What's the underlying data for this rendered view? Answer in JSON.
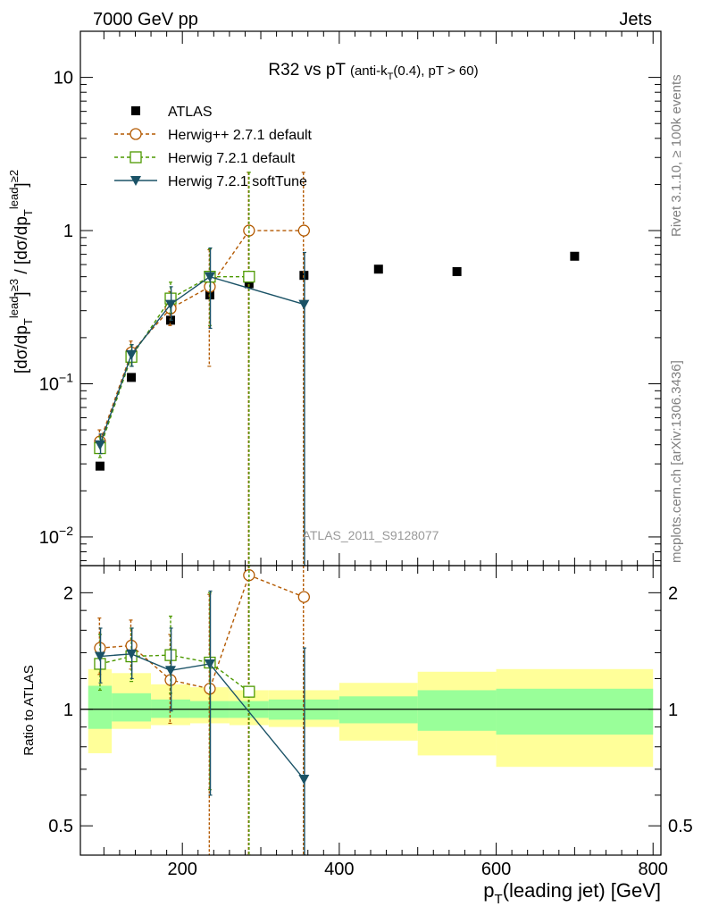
{
  "header": {
    "left": "7000 GeV pp",
    "right": "Jets"
  },
  "side_labels": {
    "rivet": "Rivet 3.1.10, ≥ 100k events",
    "mcplots": "mcplots.cern.ch [arXiv:1306.3436]"
  },
  "chart_data": [
    {
      "type": "scatter",
      "title_main": "R32 vs pT",
      "title_sub": "(anti-k_T(0.4), pT > 60)",
      "ylabel": "[dσ/dp_T^lead]^{≥3} / [dσ/dp_T^lead]^{≥2}",
      "watermark": "ATLAS_2011_S9128077",
      "yscale": "log",
      "xlim": [
        70,
        810
      ],
      "ylim": [
        0.0065,
        20
      ],
      "y_ticks": [
        {
          "value": 0.01,
          "base": "10",
          "exp": "−2"
        },
        {
          "value": 0.1,
          "base": "10",
          "exp": "−1"
        },
        {
          "value": 1,
          "base": "1",
          "exp": ""
        },
        {
          "value": 10,
          "base": "10",
          "exp": ""
        }
      ],
      "legend_position": "top-left",
      "series": [
        {
          "name": "ATLAS",
          "color": "#000000",
          "marker": "filled-square",
          "x": [
            95,
            135,
            185,
            235,
            285,
            355,
            450,
            550,
            700
          ],
          "y": [
            0.029,
            0.11,
            0.26,
            0.38,
            0.45,
            0.51,
            0.56,
            0.54,
            0.68
          ]
        },
        {
          "name": "Herwig++ 2.7.1 default",
          "color": "#b35900",
          "marker": "open-circle",
          "dash": "dashed",
          "x": [
            95,
            135,
            185,
            235,
            285,
            355
          ],
          "y": [
            0.042,
            0.16,
            0.31,
            0.43,
            1.0,
            1.0
          ],
          "err_lo": [
            0.036,
            0.14,
            0.24,
            0.13,
            0.0065,
            0.0065
          ],
          "err_hi": [
            0.05,
            0.19,
            0.4,
            0.75,
            2.4,
            2.4
          ]
        },
        {
          "name": "Herwig 7.2.1 default",
          "color": "#4d9900",
          "marker": "open-square",
          "dash": "dashed",
          "x": [
            95,
            135,
            185,
            235,
            285
          ],
          "y": [
            0.038,
            0.15,
            0.36,
            0.5,
            0.5
          ],
          "err_lo": [
            0.033,
            0.13,
            0.29,
            0.24,
            0.0065
          ],
          "err_hi": [
            0.045,
            0.18,
            0.46,
            0.76,
            2.4
          ]
        },
        {
          "name": "Herwig 7.2.1 softTune",
          "color": "#1a5266",
          "marker": "filled-triangle-down",
          "dash": "solid",
          "x": [
            95,
            135,
            185,
            235,
            355
          ],
          "y": [
            0.04,
            0.155,
            0.33,
            0.5,
            0.33
          ],
          "err_lo": [
            0.035,
            0.13,
            0.26,
            0.23,
            0.0065
          ],
          "err_hi": [
            0.047,
            0.18,
            0.43,
            0.77,
            0.72
          ]
        }
      ]
    },
    {
      "type": "scatter",
      "ylabel": "Ratio to ATLAS",
      "xlabel": "p_T(leading jet) [GeV]",
      "yscale": "log",
      "xlim": [
        70,
        810
      ],
      "ylim": [
        0.42,
        2.35
      ],
      "x_ticks": [
        200,
        400,
        600,
        800
      ],
      "y_ticks": [
        0.5,
        1,
        2
      ],
      "reference_line": 1,
      "bands": [
        {
          "x0": 80,
          "x1": 110,
          "outer": [
            0.77,
            1.27
          ],
          "inner": [
            0.89,
            1.15
          ]
        },
        {
          "x0": 110,
          "x1": 160,
          "outer": [
            0.89,
            1.24
          ],
          "inner": [
            0.93,
            1.1
          ]
        },
        {
          "x0": 160,
          "x1": 210,
          "outer": [
            0.91,
            1.16
          ],
          "inner": [
            0.95,
            1.06
          ]
        },
        {
          "x0": 210,
          "x1": 260,
          "outer": [
            0.92,
            1.14
          ],
          "inner": [
            0.95,
            1.05
          ]
        },
        {
          "x0": 260,
          "x1": 310,
          "outer": [
            0.91,
            1.12
          ],
          "inner": [
            0.95,
            1.05
          ]
        },
        {
          "x0": 310,
          "x1": 400,
          "outer": [
            0.9,
            1.12
          ],
          "inner": [
            0.94,
            1.06
          ]
        },
        {
          "x0": 400,
          "x1": 500,
          "outer": [
            0.83,
            1.17
          ],
          "inner": [
            0.92,
            1.08
          ]
        },
        {
          "x0": 500,
          "x1": 600,
          "outer": [
            0.76,
            1.25
          ],
          "inner": [
            0.88,
            1.12
          ]
        },
        {
          "x0": 600,
          "x1": 800,
          "outer": [
            0.71,
            1.27
          ],
          "inner": [
            0.86,
            1.13
          ]
        }
      ],
      "series": [
        {
          "name": "Herwig++ 2.7.1 default",
          "color": "#b35900",
          "marker": "open-circle",
          "dash": "dashed",
          "x": [
            95,
            135,
            185,
            235,
            285,
            355
          ],
          "y": [
            1.44,
            1.46,
            1.19,
            1.13,
            2.22,
            1.95
          ],
          "err_lo": [
            1.23,
            1.27,
            0.92,
            0.34,
            0.42,
            0.42
          ],
          "err_hi": [
            1.72,
            1.7,
            1.56,
            1.98,
            2.35,
            2.35
          ]
        },
        {
          "name": "Herwig 7.2.1 default",
          "color": "#4d9900",
          "marker": "open-square",
          "dash": "dashed",
          "x": [
            95,
            135,
            185,
            235,
            285
          ],
          "y": [
            1.31,
            1.37,
            1.38,
            1.32,
            1.11
          ],
          "err_lo": [
            1.12,
            1.18,
            1.1,
            0.62,
            0.42
          ],
          "err_hi": [
            1.56,
            1.62,
            1.74,
            2.0,
            2.35
          ]
        },
        {
          "name": "Herwig 7.2.1 softTune",
          "color": "#1a5266",
          "marker": "filled-triangle-down",
          "dash": "solid",
          "x": [
            95,
            135,
            185,
            235,
            355
          ],
          "y": [
            1.37,
            1.39,
            1.26,
            1.31,
            0.66
          ],
          "err_lo": [
            1.17,
            1.2,
            0.99,
            0.6,
            0.42
          ],
          "err_hi": [
            1.62,
            1.62,
            1.62,
            2.02,
            1.44
          ]
        }
      ]
    }
  ]
}
